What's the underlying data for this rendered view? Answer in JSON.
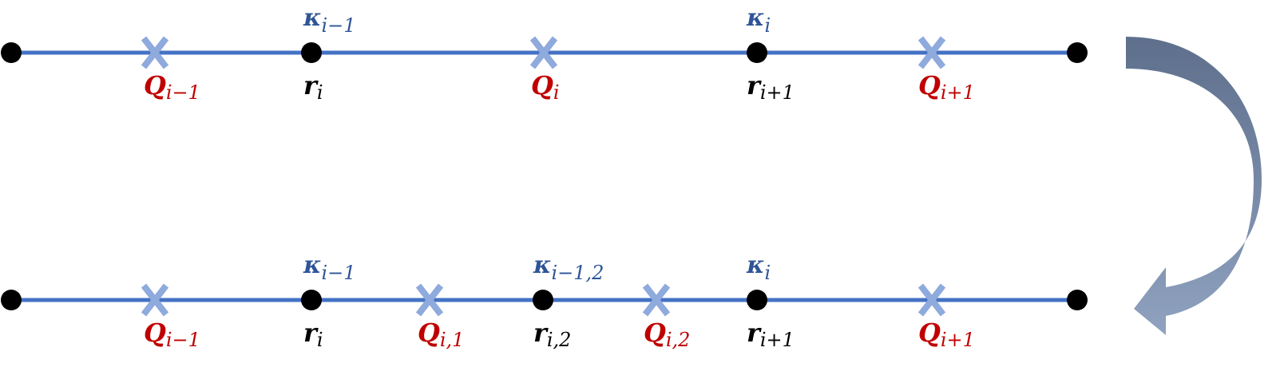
{
  "colors": {
    "line": "#4472C4",
    "node": "#000000",
    "cross": "#8FAADC",
    "q_label": "#C00000",
    "r_label": "#000000",
    "kappa_label": "#2F5597",
    "arrow_dark": "#5A6B86",
    "arrow_light": "#8FA2BF"
  },
  "top_row": {
    "kappas": [
      {
        "base": "κ",
        "sub": "i−1"
      },
      {
        "base": "κ",
        "sub": "i"
      }
    ],
    "rs": [
      {
        "base": "r",
        "sub": "i"
      },
      {
        "base": "r",
        "sub": "i+1"
      }
    ],
    "qs": [
      {
        "base": "Q",
        "sub": "i−1"
      },
      {
        "base": "Q",
        "sub": "i"
      },
      {
        "base": "Q",
        "sub": "i+1"
      }
    ]
  },
  "bottom_row": {
    "kappas": [
      {
        "base": "κ",
        "sub": "i−1"
      },
      {
        "base": "κ",
        "sub": "i−1,2"
      },
      {
        "base": "κ",
        "sub": "i"
      }
    ],
    "rs": [
      {
        "base": "r",
        "sub": "i"
      },
      {
        "base": "r",
        "sub": "i,2"
      },
      {
        "base": "r",
        "sub": "i+1"
      }
    ],
    "qs": [
      {
        "base": "Q",
        "sub": "i−1"
      },
      {
        "base": "Q",
        "sub": "i,1"
      },
      {
        "base": "Q",
        "sub": "i,2"
      },
      {
        "base": "Q",
        "sub": "i+1"
      }
    ]
  }
}
